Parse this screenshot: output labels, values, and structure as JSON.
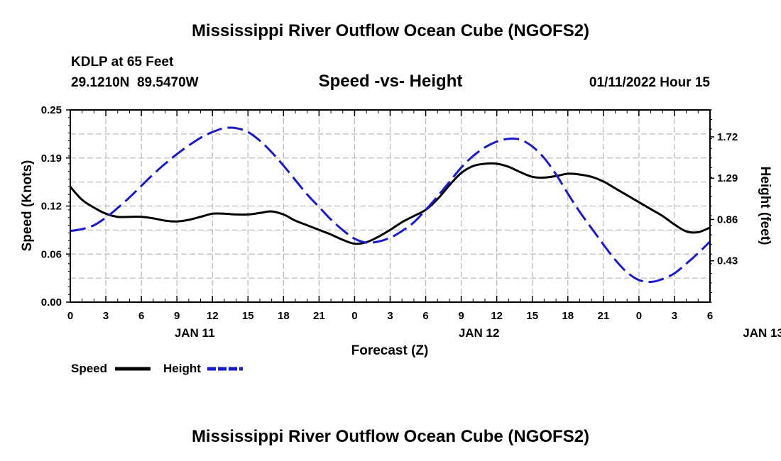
{
  "chart_data": {
    "type": "line",
    "title": "Mississippi River Outflow Ocean Cube (NGOFS2)",
    "station": "KDLP at 65 Feet",
    "coords": "29.1210N  89.5470W",
    "subtitle": "Speed -vs- Height",
    "datetime": "01/11/2022 Hour 15",
    "xlabel": "Forecast (Z)",
    "ylabel": "Speed (Knots)",
    "y2label": "Height (feet)",
    "x_ticks": [
      "0",
      "3",
      "6",
      "9",
      "12",
      "15",
      "18",
      "21",
      "0",
      "3",
      "6",
      "9",
      "12",
      "15",
      "18",
      "21",
      "0",
      "3",
      "6"
    ],
    "day_labels": [
      {
        "label": "JAN 11",
        "hour": 10.5
      },
      {
        "label": "JAN 12",
        "hour": 34.5
      },
      {
        "label": "JAN 13",
        "hour": 58.5
      }
    ],
    "xlim": [
      0,
      54
    ],
    "ylim": [
      0,
      0.25
    ],
    "y_ticks": [
      "0.25",
      "0.19",
      "0.12",
      "0.06",
      "0.00"
    ],
    "y_tick_values": [
      0.25,
      0.1875,
      0.125,
      0.0625,
      0.0
    ],
    "y2lim": [
      0,
      2.0
    ],
    "y2_ticks": [
      "1.72",
      "1.29",
      "0.86",
      "0.43"
    ],
    "y2_tick_values": [
      1.72,
      1.29,
      0.86,
      0.43
    ],
    "series": [
      {
        "name": "Speed",
        "axis": "left",
        "color": "#000000",
        "dash": "solid",
        "x": [
          0,
          1,
          2,
          3,
          4,
          5,
          6,
          7,
          8,
          9,
          10,
          11,
          12,
          13,
          14,
          15,
          16,
          17,
          18,
          19,
          20,
          21,
          22,
          23,
          24,
          25,
          26,
          27,
          28,
          29,
          30,
          31,
          32,
          33,
          34,
          35,
          36,
          37,
          38,
          39,
          40,
          41,
          42,
          43,
          44,
          45,
          46,
          47,
          48,
          49,
          50,
          51,
          52,
          53,
          54
        ],
        "values": [
          0.15,
          0.133,
          0.123,
          0.115,
          0.111,
          0.111,
          0.111,
          0.109,
          0.106,
          0.105,
          0.107,
          0.111,
          0.115,
          0.115,
          0.114,
          0.114,
          0.116,
          0.118,
          0.114,
          0.106,
          0.1,
          0.094,
          0.088,
          0.081,
          0.076,
          0.078,
          0.085,
          0.094,
          0.104,
          0.112,
          0.12,
          0.134,
          0.152,
          0.168,
          0.177,
          0.18,
          0.18,
          0.176,
          0.169,
          0.163,
          0.162,
          0.164,
          0.167,
          0.166,
          0.163,
          0.157,
          0.148,
          0.139,
          0.13,
          0.121,
          0.112,
          0.101,
          0.092,
          0.091,
          0.097
        ]
      },
      {
        "name": "Height",
        "axis": "right",
        "color": "#1a1acc",
        "dash": "dashed",
        "x": [
          0,
          1,
          2,
          3,
          4,
          5,
          6,
          7,
          8,
          9,
          10,
          11,
          12,
          13,
          14,
          15,
          16,
          17,
          18,
          19,
          20,
          21,
          22,
          23,
          24,
          25,
          26,
          27,
          28,
          29,
          30,
          31,
          32,
          33,
          34,
          35,
          36,
          37,
          38,
          39,
          40,
          41,
          42,
          43,
          44,
          45,
          46,
          47,
          48,
          49,
          50,
          51,
          52,
          53,
          54
        ],
        "values": [
          0.74,
          0.76,
          0.8,
          0.88,
          0.98,
          1.09,
          1.21,
          1.33,
          1.44,
          1.54,
          1.63,
          1.71,
          1.77,
          1.81,
          1.81,
          1.77,
          1.68,
          1.56,
          1.42,
          1.27,
          1.12,
          0.99,
          0.86,
          0.75,
          0.66,
          0.62,
          0.63,
          0.67,
          0.74,
          0.83,
          0.96,
          1.1,
          1.25,
          1.4,
          1.52,
          1.61,
          1.67,
          1.7,
          1.69,
          1.62,
          1.5,
          1.33,
          1.13,
          0.94,
          0.77,
          0.6,
          0.44,
          0.31,
          0.23,
          0.21,
          0.24,
          0.3,
          0.4,
          0.51,
          0.63
        ]
      }
    ],
    "legend": [
      {
        "label": "Speed",
        "color": "#000000",
        "dash": "solid"
      },
      {
        "label": "Height",
        "color": "#1a1acc",
        "dash": "dashed"
      }
    ],
    "grid": true
  },
  "footer_title": "Mississippi River Outflow Ocean Cube (NGOFS2)"
}
